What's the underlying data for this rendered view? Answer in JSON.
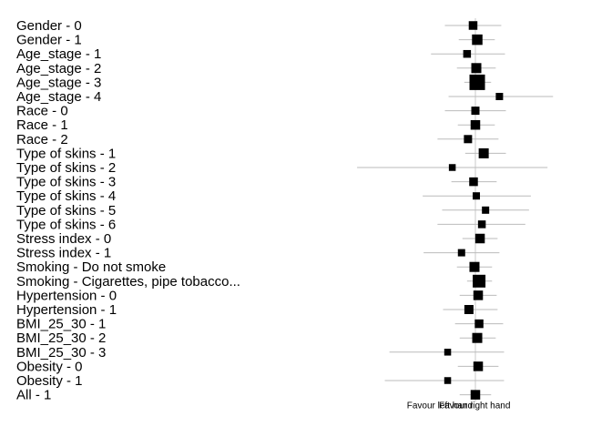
{
  "chart_data": {
    "type": "forest",
    "reference_line": 0,
    "footer_left": "Favour left hand",
    "footer_right": "Favour right hand",
    "colors": {
      "ci": "#bbbbbb",
      "marker": "#000000",
      "text": "#000000"
    },
    "rows": [
      {
        "label": "Gender - 0",
        "est": -0.25,
        "lo": -3.3,
        "hi": 2.8,
        "weight": 0.55
      },
      {
        "label": "Gender - 1",
        "est": 0.2,
        "lo": -1.8,
        "hi": 2.1,
        "weight": 0.75
      },
      {
        "label": "Age_stage - 1",
        "est": -0.9,
        "lo": -4.8,
        "hi": 3.2,
        "weight": 0.45
      },
      {
        "label": "Age_stage - 2",
        "est": 0.1,
        "lo": -2.0,
        "hi": 2.2,
        "weight": 0.7
      },
      {
        "label": "Age_stage - 3",
        "est": 0.2,
        "lo": -1.2,
        "hi": 1.7,
        "weight": 1.3
      },
      {
        "label": "Age_stage - 4",
        "est": 2.6,
        "lo": -2.9,
        "hi": 8.4,
        "weight": 0.4
      },
      {
        "label": "Race - 0",
        "est": 0.0,
        "lo": -3.3,
        "hi": 3.3,
        "weight": 0.5
      },
      {
        "label": "Race - 1",
        "est": 0.0,
        "lo": -1.9,
        "hi": 2.1,
        "weight": 0.65
      },
      {
        "label": "Race - 2",
        "est": -0.8,
        "lo": -4.1,
        "hi": 2.5,
        "weight": 0.5
      },
      {
        "label": "Type of skins - 1",
        "est": 0.9,
        "lo": -1.1,
        "hi": 3.3,
        "weight": 0.7
      },
      {
        "label": "Type of skins - 2",
        "est": -2.5,
        "lo": -12.8,
        "hi": 7.8,
        "weight": 0.35
      },
      {
        "label": "Type of skins - 3",
        "est": -0.2,
        "lo": -2.6,
        "hi": 2.3,
        "weight": 0.55
      },
      {
        "label": "Type of skins - 4",
        "est": 0.1,
        "lo": -5.7,
        "hi": 6.0,
        "weight": 0.4
      },
      {
        "label": "Type of skins - 5",
        "est": 1.1,
        "lo": -3.6,
        "hi": 5.8,
        "weight": 0.4
      },
      {
        "label": "Type of skins - 6",
        "est": 0.7,
        "lo": -4.1,
        "hi": 5.4,
        "weight": 0.45
      },
      {
        "label": "Stress index - 0",
        "est": 0.5,
        "lo": -1.4,
        "hi": 2.4,
        "weight": 0.65
      },
      {
        "label": "Stress index - 1",
        "est": -1.5,
        "lo": -5.6,
        "hi": 2.6,
        "weight": 0.4
      },
      {
        "label": "Smoking - Do not smoke",
        "est": -0.1,
        "lo": -2.0,
        "hi": 1.8,
        "weight": 0.7
      },
      {
        "label": "Smoking - Cigarettes, pipe tobacco...",
        "est": 0.4,
        "lo": -0.9,
        "hi": 1.8,
        "weight": 1.0
      },
      {
        "label": "Hypertension - 0",
        "est": 0.3,
        "lo": -1.7,
        "hi": 2.3,
        "weight": 0.65
      },
      {
        "label": "Hypertension - 1",
        "est": -0.7,
        "lo": -3.5,
        "hi": 2.4,
        "weight": 0.6
      },
      {
        "label": "BMI_25_30 - 1",
        "est": 0.4,
        "lo": -2.2,
        "hi": 3.0,
        "weight": 0.55
      },
      {
        "label": "BMI_25_30 - 2",
        "est": 0.2,
        "lo": -1.7,
        "hi": 2.2,
        "weight": 0.7
      },
      {
        "label": "BMI_25_30 - 3",
        "est": -3.0,
        "lo": -9.3,
        "hi": 3.1,
        "weight": 0.35
      },
      {
        "label": "Obesity - 0",
        "est": 0.3,
        "lo": -1.9,
        "hi": 2.5,
        "weight": 0.65
      },
      {
        "label": "Obesity - 1",
        "est": -3.0,
        "lo": -9.8,
        "hi": 3.1,
        "weight": 0.35
      },
      {
        "label": "All - 1",
        "est": 0.0,
        "lo": -1.7,
        "hi": 1.7,
        "weight": 0.65
      }
    ]
  }
}
